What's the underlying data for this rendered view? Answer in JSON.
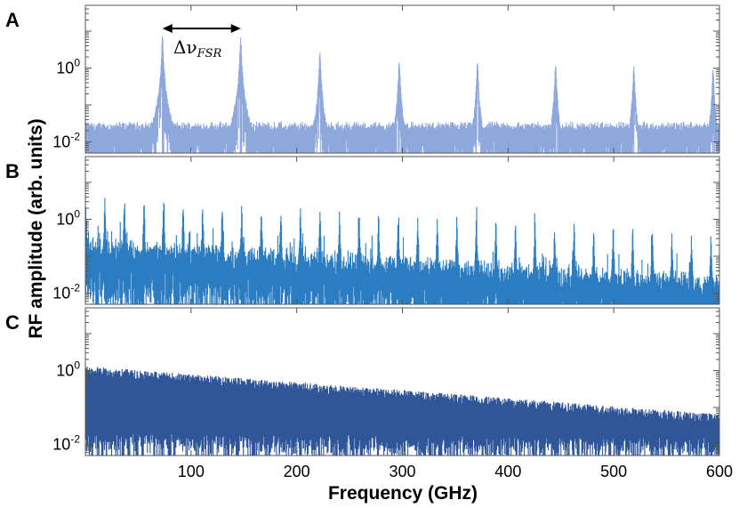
{
  "chart_data": [
    {
      "type": "line",
      "panel_label": "A",
      "color": "#8fa8dc",
      "x_range": [
        0,
        600
      ],
      "y_scale": "log",
      "y_range": [
        0.005,
        50
      ],
      "y_ticks": [
        {
          "base": "10",
          "exp": "-2"
        },
        {
          "base": "10",
          "exp": "0"
        }
      ],
      "peak_positions_ghz": [
        73,
        147,
        222,
        297,
        371,
        445,
        519,
        594
      ],
      "peak_heights": [
        7.0,
        6.5,
        2.6,
        1.6,
        1.4,
        1.3,
        1.1,
        1.0
      ],
      "noise_floor": 0.02,
      "annotation": {
        "text": "Δν",
        "subscript": "FSR",
        "from_ghz": 73,
        "to_ghz": 147
      }
    },
    {
      "type": "line",
      "panel_label": "B",
      "color": "#2b7cc0",
      "x_range": [
        0,
        600
      ],
      "y_scale": "log",
      "y_range": [
        0.005,
        50
      ],
      "y_ticks": [
        {
          "base": "10",
          "exp": "-2"
        },
        {
          "base": "10",
          "exp": "0"
        }
      ],
      "peak_spacing_ghz": 18.5,
      "peak_height_start": 4.0,
      "peak_height_end": 0.4,
      "noise_floor_start": 0.1,
      "noise_floor_end": 0.01
    },
    {
      "type": "line",
      "panel_label": "C",
      "color": "#2f5699",
      "x_range": [
        0,
        600
      ],
      "y_scale": "log",
      "y_range": [
        0.005,
        50
      ],
      "y_ticks": [
        {
          "base": "10",
          "exp": "-2"
        },
        {
          "base": "10",
          "exp": "0"
        }
      ],
      "envelope_start": 1.2,
      "envelope_end": 0.06,
      "floor_start": 0.01,
      "floor_end": 0.007
    }
  ],
  "x_ticks": [
    "100",
    "200",
    "300",
    "400",
    "500",
    "600"
  ],
  "x_tick_values": [
    100,
    200,
    300,
    400,
    500,
    600
  ],
  "xlabel": "Frequency (GHz)",
  "ylabel": "RF amplitude (arb. units)"
}
